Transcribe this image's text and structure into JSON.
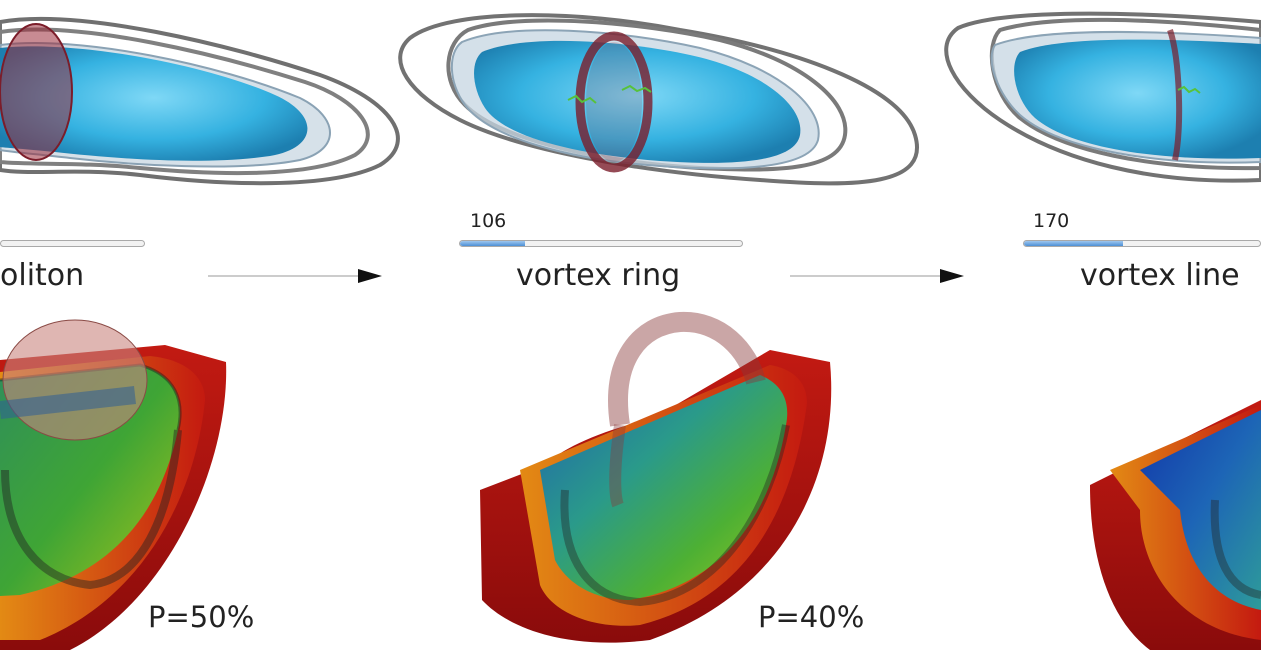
{
  "stages": [
    {
      "name": "oliton",
      "timestep": "",
      "progress": 0,
      "pressure": "P=50%"
    },
    {
      "name": "vortex ring",
      "timestep": "106",
      "progress": 0.23,
      "pressure": "P=40%"
    },
    {
      "name": "vortex line",
      "timestep": "170",
      "progress": 0.42,
      "pressure": ""
    }
  ],
  "colors": {
    "condensate": "#3fb9e3",
    "outer_shell": "#6f6f6f",
    "soliton_plane": "#9b2b3a",
    "cell_hot": "#b80f0f",
    "cell_mid": "#46a832",
    "cell_cold": "#1f4fa8",
    "arrow": "#111111"
  }
}
